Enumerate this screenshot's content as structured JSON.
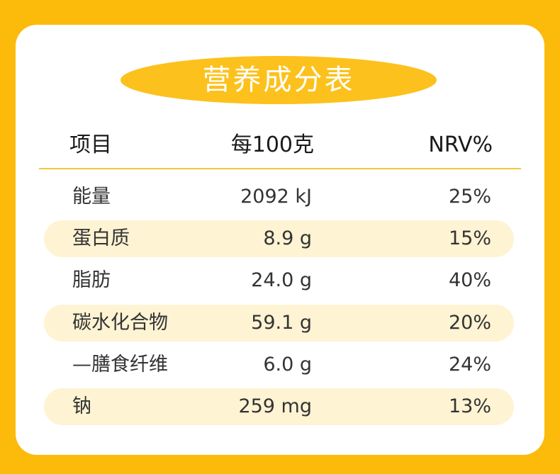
{
  "title": "营养成分表",
  "table": {
    "header": [
      "项目",
      "每100克",
      "NRV%"
    ],
    "rows": [
      [
        "能量",
        "2092 kJ",
        "25%"
      ],
      [
        "蛋白质",
        "8.9 g",
        "15%"
      ],
      [
        "脂肪",
        "24.0 g",
        "40%"
      ],
      [
        "碳水化合物",
        "59.1 g",
        "20%"
      ],
      [
        "—膳食纤维",
        "6.0 g",
        "24%"
      ],
      [
        "钠",
        "259 mg",
        "13%"
      ]
    ]
  }
}
